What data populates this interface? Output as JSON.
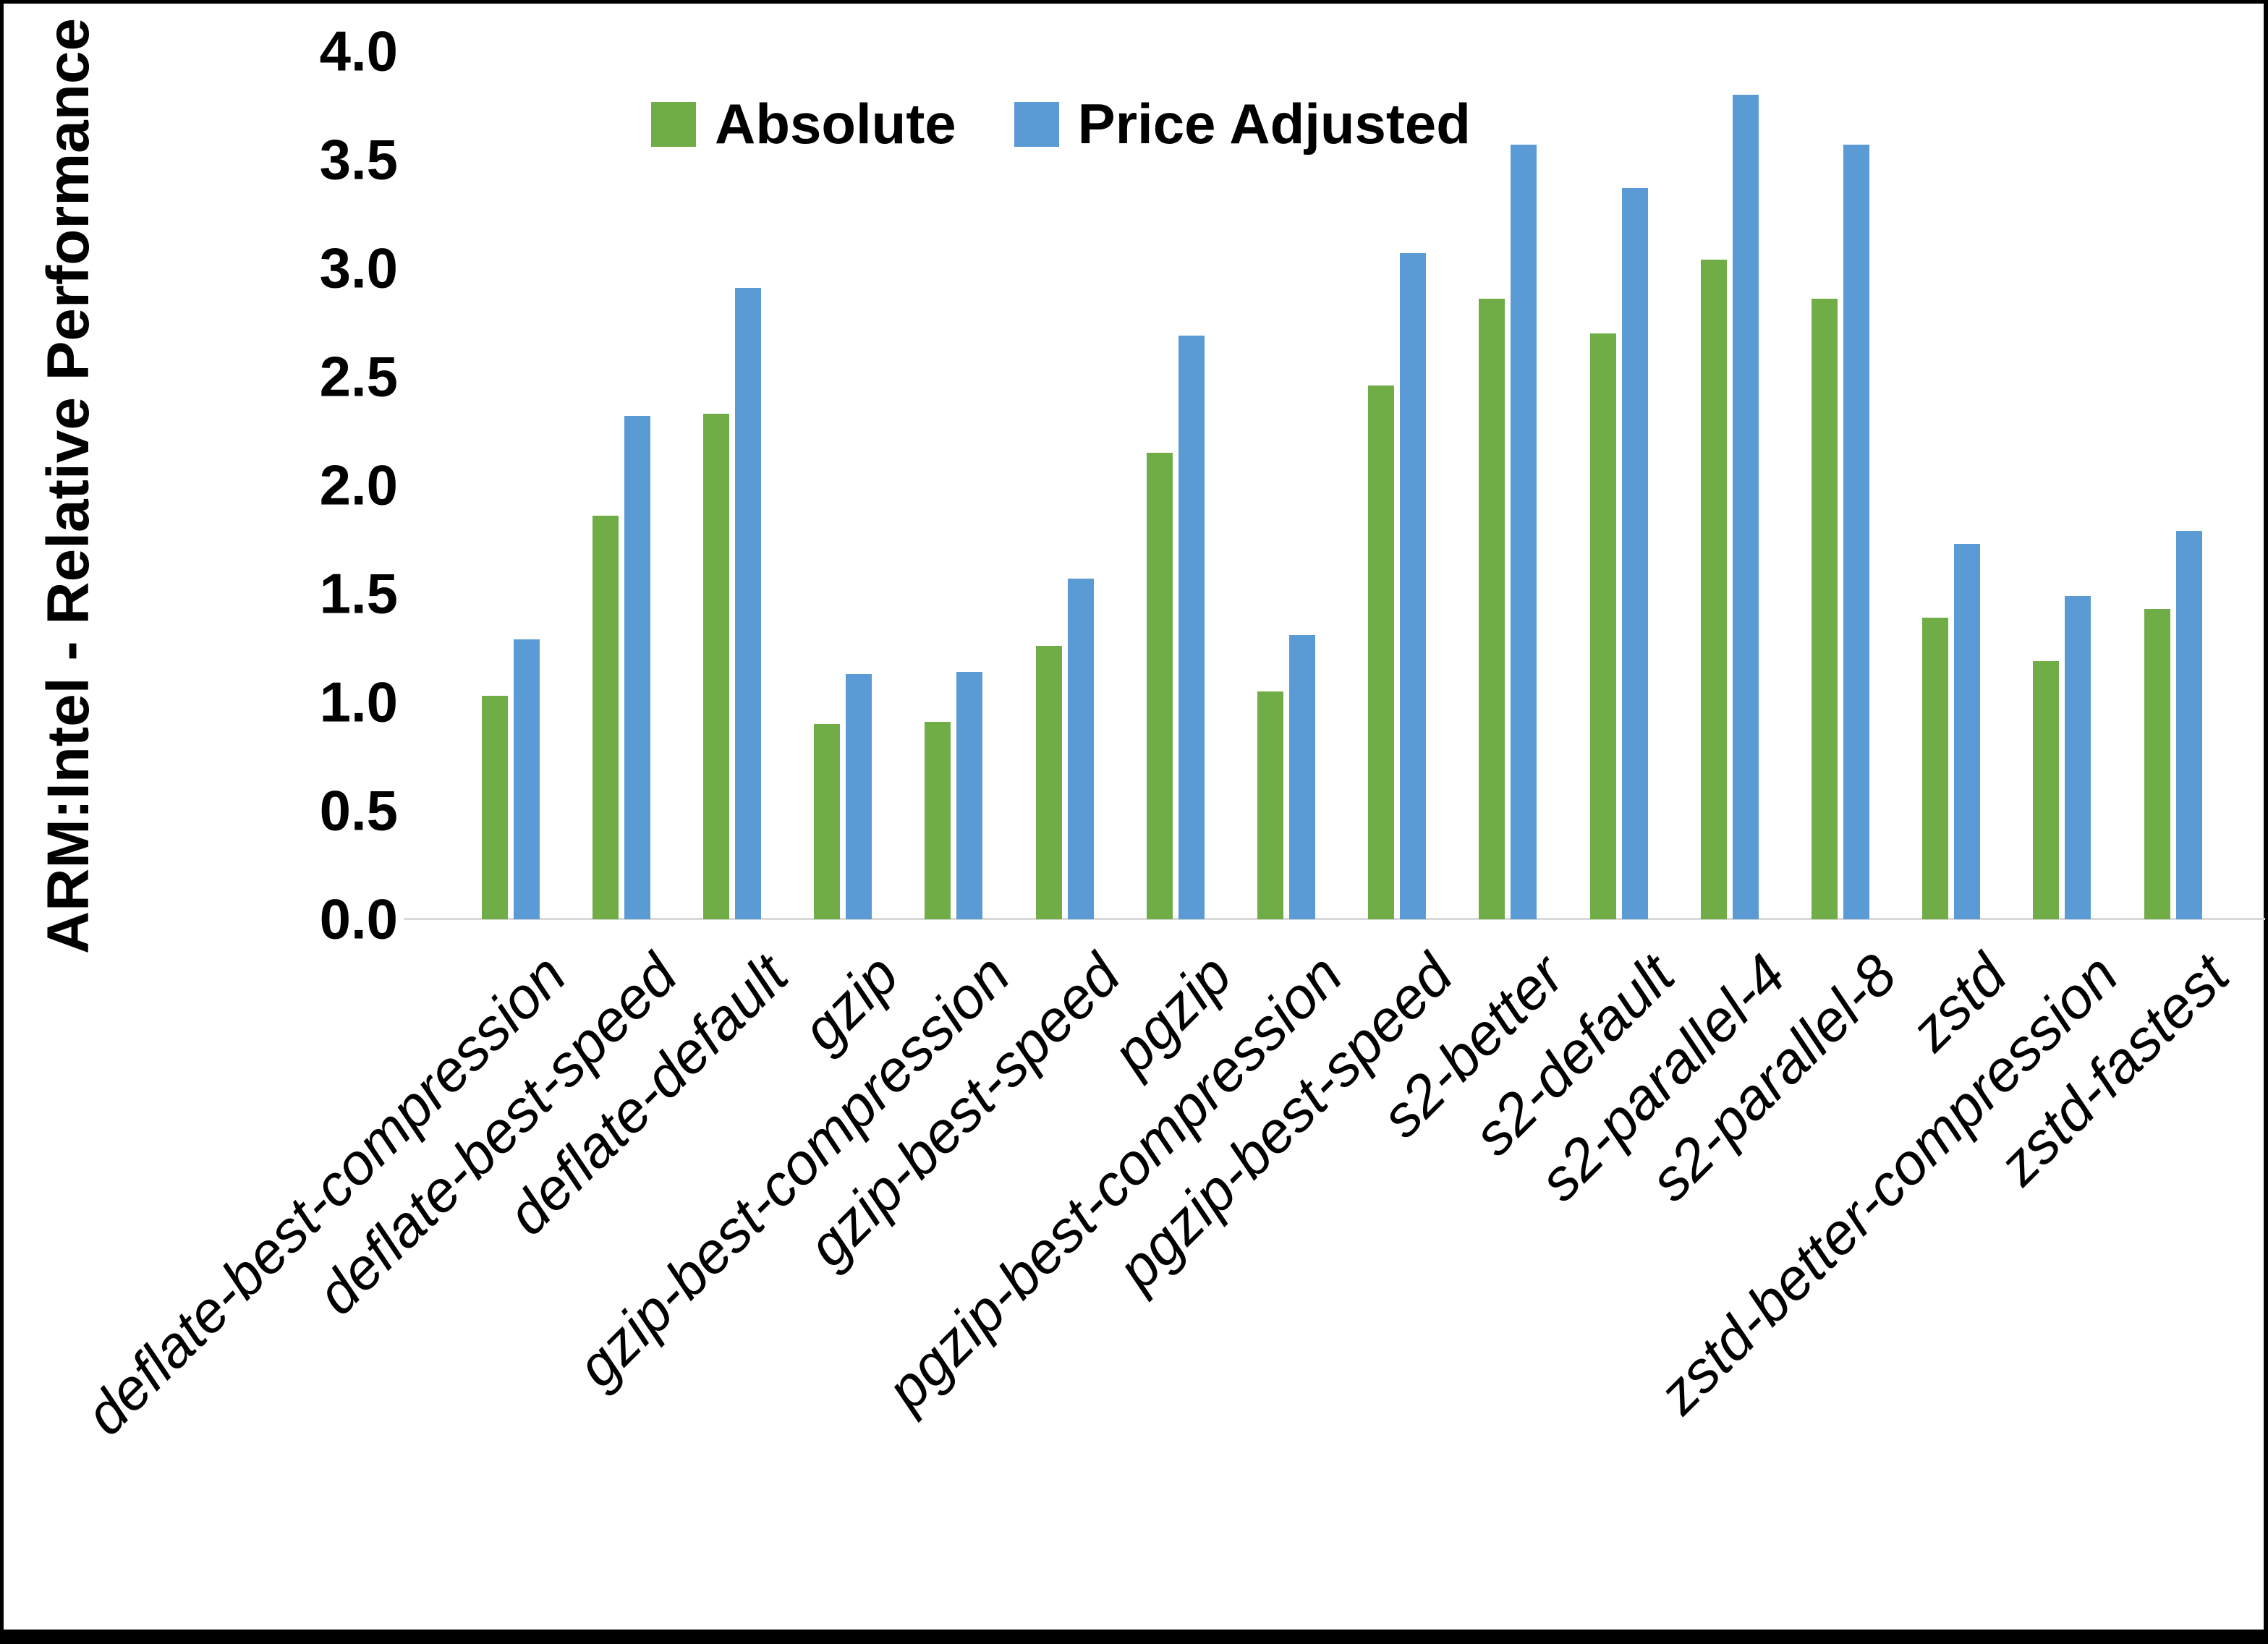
{
  "figure": {
    "background": "#ffffff",
    "border_color": "#000000"
  },
  "y_axis": {
    "title": "ARM:Intel - Relative Performance",
    "tick_labels": [
      "0.0",
      "0.5",
      "1.0",
      "1.5",
      "2.0",
      "2.5",
      "3.0",
      "3.5",
      "4.0"
    ],
    "min": 0,
    "max": 4
  },
  "legend": {
    "items": [
      {
        "label": "Absolute",
        "color": "#70AD47"
      },
      {
        "label": "Price Adjusted",
        "color": "#5B9BD5"
      }
    ],
    "position": "top-center"
  },
  "chart_data": {
    "type": "bar",
    "title": "",
    "xlabel": "",
    "ylabel": "ARM:Intel - Relative Performance",
    "ylim": [
      0,
      4
    ],
    "ytick_step": 0.5,
    "grid": false,
    "legend_position": "top-center",
    "axis_line_color": "#d9d9d9",
    "categories": [
      "deflate-best-compression",
      "deflate-best-speed",
      "deflate-default",
      "gzip",
      "gzip-best-compression",
      "gzip-best-speed",
      "pgzip",
      "pgzip-best-compression",
      "pgzip-best-speed",
      "s2-better",
      "s2-default",
      "s2-parallel-4",
      "s2-parallel-8",
      "zstd",
      "zstd-better-compression",
      "zstd-fastest"
    ],
    "series": [
      {
        "name": "Absolute",
        "color": "#70AD47",
        "values": [
          1.03,
          1.86,
          2.33,
          0.9,
          0.91,
          1.26,
          2.15,
          1.05,
          2.46,
          2.86,
          2.7,
          3.04,
          2.86,
          1.39,
          1.19,
          1.43
        ]
      },
      {
        "name": "Price Adjusted",
        "color": "#5B9BD5",
        "values": [
          1.29,
          2.32,
          2.91,
          1.13,
          1.14,
          1.57,
          2.69,
          1.31,
          3.07,
          3.57,
          3.37,
          3.8,
          3.57,
          1.73,
          1.49,
          1.79
        ]
      }
    ]
  }
}
